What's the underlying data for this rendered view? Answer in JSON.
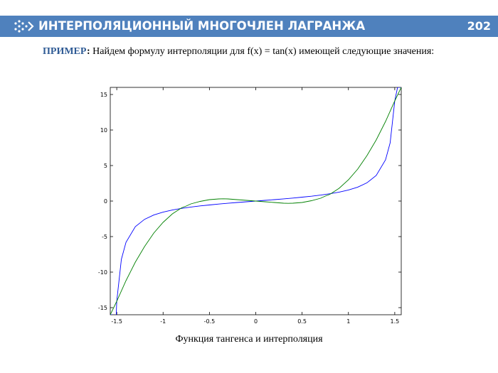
{
  "header": {
    "title": "ИНТЕРПОЛЯЦИОННЫЙ МНОГОЧЛЕН ЛАГРАНЖА",
    "page_number": "202",
    "logo_icon": "chevron-dots-icon"
  },
  "content": {
    "example_label": "ПРИМЕР",
    "example_colon": ":",
    "example_text": " Найдем формулу интерполяции для f(x) = tan(x) имеющей следующие значения:"
  },
  "caption": "Функция тангенса и интерполяция",
  "colors": {
    "header_bg": "#4f81bd",
    "series_tan": "#0000ff",
    "series_interp": "#008000",
    "label_blue": "#2f5b95"
  },
  "chart_data": {
    "type": "line",
    "title": "",
    "xlabel": "",
    "ylabel": "",
    "xlim": [
      -1.57,
      1.57
    ],
    "ylim": [
      -16,
      16
    ],
    "x_ticks": [
      -1.5,
      -1,
      -0.5,
      0,
      0.5,
      1,
      1.5
    ],
    "x_tick_labels": [
      "-1.5",
      "-1",
      "-0.5",
      "0",
      "0.5",
      "1",
      "1.5"
    ],
    "y_ticks": [
      15,
      10,
      5,
      0,
      -5,
      -10,
      -15
    ],
    "y_tick_labels": [
      "15",
      "10",
      "5",
      "0",
      "-5",
      "-10",
      "-15"
    ],
    "grid": false,
    "series": [
      {
        "color": "#0000ff",
        "x": [
          -1.57,
          -1.56,
          -1.55,
          -1.53,
          -1.5,
          -1.45,
          -1.4,
          -1.3,
          -1.2,
          -1.1,
          -1.0,
          -0.9,
          -0.8,
          -0.7,
          -0.6,
          -0.5,
          -0.4,
          -0.3,
          -0.2,
          -0.1,
          0,
          0.1,
          0.2,
          0.3,
          0.4,
          0.5,
          0.6,
          0.7,
          0.8,
          0.9,
          1.0,
          1.1,
          1.2,
          1.3,
          1.4,
          1.45,
          1.5,
          1.53,
          1.55,
          1.56,
          1.57
        ],
        "y": [
          -16,
          -16,
          -16,
          -24.5,
          -14.1,
          -8.2,
          -5.8,
          -3.6,
          -2.57,
          -1.96,
          -1.56,
          -1.26,
          -1.03,
          -0.84,
          -0.68,
          -0.55,
          -0.42,
          -0.31,
          -0.2,
          -0.1,
          0,
          0.1,
          0.2,
          0.31,
          0.42,
          0.55,
          0.68,
          0.84,
          1.03,
          1.26,
          1.56,
          1.96,
          2.57,
          3.6,
          5.8,
          8.2,
          14.1,
          16,
          16,
          16,
          16
        ]
      },
      {
        "color": "#008000",
        "x": [
          -1.57,
          -1.5,
          -1.4,
          -1.3,
          -1.2,
          -1.1,
          -1.0,
          -0.9,
          -0.8,
          -0.75,
          -0.7,
          -0.6,
          -0.5,
          -0.4,
          -0.35,
          -0.3,
          -0.2,
          -0.1,
          0,
          0.1,
          0.2,
          0.3,
          0.35,
          0.4,
          0.5,
          0.6,
          0.7,
          0.75,
          0.8,
          0.9,
          1.0,
          1.1,
          1.2,
          1.3,
          1.4,
          1.5,
          1.57
        ],
        "y": [
          -16,
          -14.1,
          -11.2,
          -8.6,
          -6.4,
          -4.5,
          -3.0,
          -1.8,
          -0.95,
          -0.7,
          -0.4,
          -0.05,
          0.2,
          0.3,
          0.32,
          0.3,
          0.2,
          0.1,
          0,
          -0.1,
          -0.2,
          -0.3,
          -0.32,
          -0.3,
          -0.2,
          0.05,
          0.4,
          0.7,
          0.95,
          1.8,
          3.0,
          4.5,
          6.4,
          8.6,
          11.2,
          14.1,
          16
        ]
      }
    ]
  }
}
